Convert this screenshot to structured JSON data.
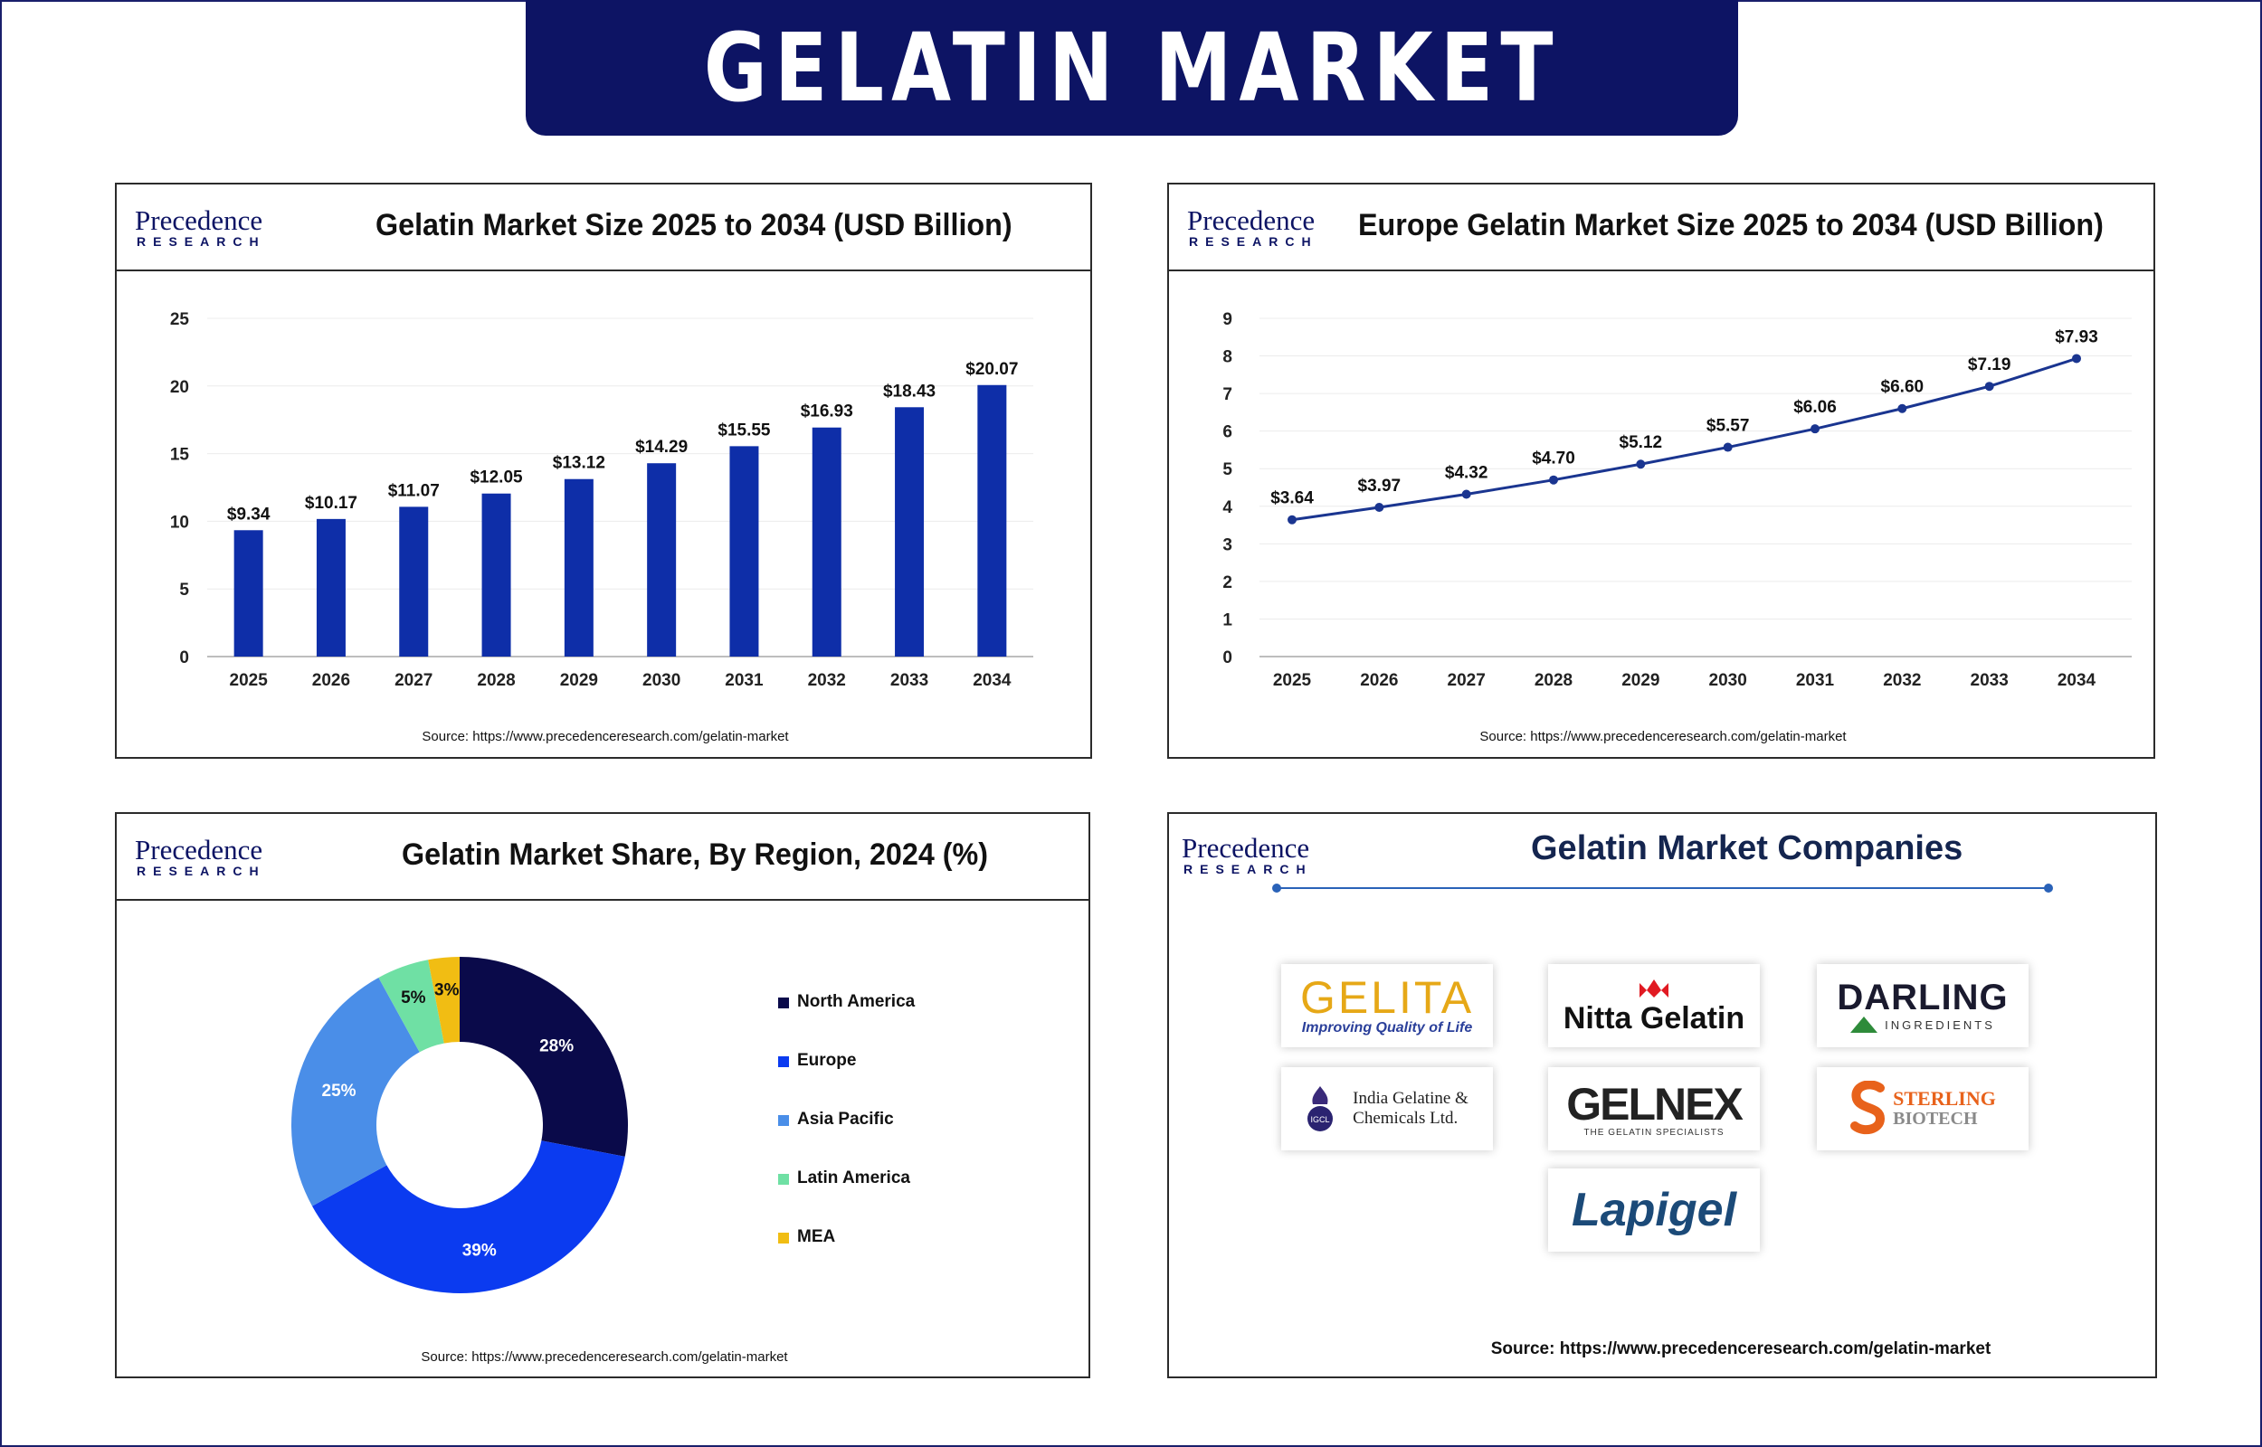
{
  "banner": {
    "title": "GELATIN MARKET"
  },
  "logo": {
    "word": "Precedence",
    "sub": "RESEARCH"
  },
  "source_text": "Source: https://www.precedenceresearch.com/gelatin-market",
  "colors": {
    "navy": "#0d1464",
    "bar": "#0e2ea8",
    "line": "#1a3590"
  },
  "chart_data": [
    {
      "type": "bar",
      "title": "Gelatin Market Size 2025 to 2034 (USD Billion)",
      "categories": [
        "2025",
        "2026",
        "2027",
        "2028",
        "2029",
        "2030",
        "2031",
        "2032",
        "2033",
        "2034"
      ],
      "values": [
        9.34,
        10.17,
        11.07,
        12.05,
        13.12,
        14.29,
        15.55,
        16.93,
        18.43,
        20.07
      ],
      "data_labels": [
        "$9.34",
        "$10.17",
        "$11.07",
        "$12.05",
        "$13.12",
        "$14.29",
        "$15.55",
        "$16.93",
        "$18.43",
        "$20.07"
      ],
      "yticks": [
        "0",
        "5",
        "10",
        "15",
        "20",
        "25"
      ],
      "ylim": [
        0,
        25
      ],
      "grid": true
    },
    {
      "type": "line",
      "title": "Europe Gelatin Market Size 2025 to 2034 (USD Billion)",
      "categories": [
        "2025",
        "2026",
        "2027",
        "2028",
        "2029",
        "2030",
        "2031",
        "2032",
        "2033",
        "2034"
      ],
      "values": [
        3.64,
        3.97,
        4.32,
        4.7,
        5.12,
        5.57,
        6.06,
        6.6,
        7.19,
        7.93
      ],
      "data_labels": [
        "$3.64",
        "$3.97",
        "$4.32",
        "$4.70",
        "$5.12",
        "$5.57",
        "$6.06",
        "$6.60",
        "$7.19",
        "$7.93"
      ],
      "yticks": [
        "0",
        "1",
        "2",
        "3",
        "4",
        "5",
        "6",
        "7",
        "8",
        "9"
      ],
      "ylim": [
        0,
        9
      ],
      "grid": true
    },
    {
      "type": "pie",
      "title": "Gelatin Market Share, By Region, 2024 (%)",
      "donut": true,
      "legend_position": "right",
      "slices": [
        {
          "name": "North America",
          "value": 28,
          "label": "28%",
          "color": "#0a0a4a",
          "label_color": "#ffffff"
        },
        {
          "name": "Europe",
          "value": 39,
          "label": "39%",
          "color": "#0b3bf0",
          "label_color": "#ffffff"
        },
        {
          "name": "Asia Pacific",
          "value": 25,
          "label": "25%",
          "color": "#4a8ee8",
          "label_color": "#ffffff"
        },
        {
          "name": "Latin America",
          "value": 5,
          "label": "5%",
          "color": "#6fe0a4",
          "label_color": "#111111"
        },
        {
          "name": "MEA",
          "value": 3,
          "label": "3%",
          "color": "#f1bd13",
          "label_color": "#111111"
        }
      ]
    }
  ],
  "companies": {
    "title": "Gelatin Market Companies",
    "source": "Source: https://www.precedenceresearch.com/gelatin-market",
    "gelita": {
      "name": "GELITA",
      "tagline": "Improving Quality of Life"
    },
    "nitta": {
      "name": "Nitta Gelatin"
    },
    "darling": {
      "name": "DARLING",
      "sub": "INGREDIENTS"
    },
    "india": {
      "line1": "India Gelatine &",
      "line2": "Chemicals Ltd."
    },
    "gelnex": {
      "name": "GELNEX",
      "sub": "THE GELATIN SPECIALISTS"
    },
    "sterling": {
      "name": "STERLING",
      "sub": "BIOTECH"
    },
    "lapigel": {
      "name": "Lapigel"
    }
  }
}
